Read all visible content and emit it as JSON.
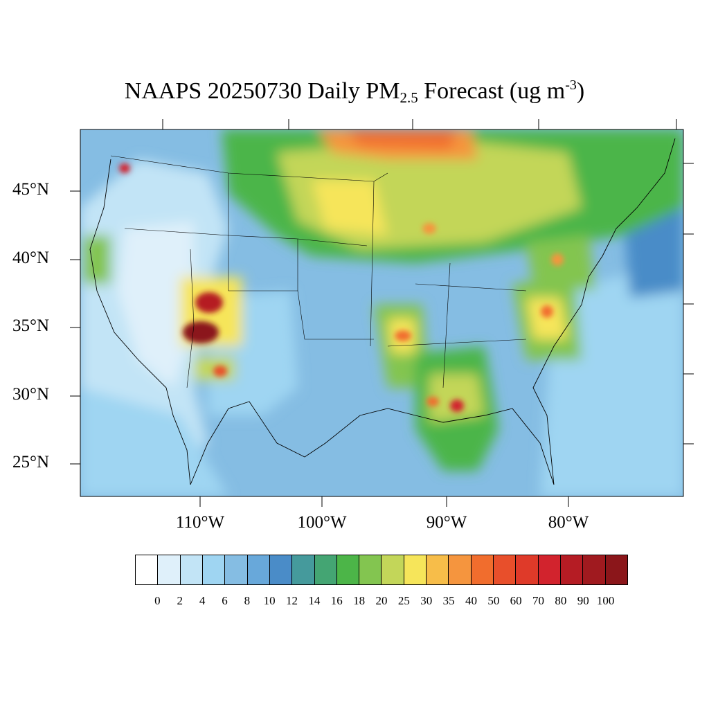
{
  "title": {
    "prefix": "NAAPS 20250730 Daily PM",
    "subscript": "2.5",
    "middle": " Forecast (ug m",
    "superscript": "-3",
    "suffix": ")"
  },
  "lat_labels": [
    "45°N",
    "40°N",
    "35°N",
    "30°N",
    "25°N"
  ],
  "lon_labels": [
    "110°W",
    "100°W",
    "90°W",
    "80°W"
  ],
  "colorbar": {
    "labels": [
      "0",
      "2",
      "4",
      "6",
      "8",
      "10",
      "12",
      "14",
      "16",
      "18",
      "20",
      "25",
      "30",
      "35",
      "40",
      "50",
      "60",
      "70",
      "80",
      "90",
      "100"
    ],
    "colors": [
      "#ffffff",
      "#dff0fa",
      "#c2e4f6",
      "#9fd5f2",
      "#85bde3",
      "#68a8da",
      "#4a8cc8",
      "#459a9c",
      "#44a573",
      "#4cb548",
      "#83c550",
      "#c3d659",
      "#f6e55a",
      "#f7bd49",
      "#f5953e",
      "#f16d2d",
      "#e84f2b",
      "#df3a29",
      "#d2232d",
      "#b51c24",
      "#a01a1f",
      "#8b161a"
    ]
  }
}
